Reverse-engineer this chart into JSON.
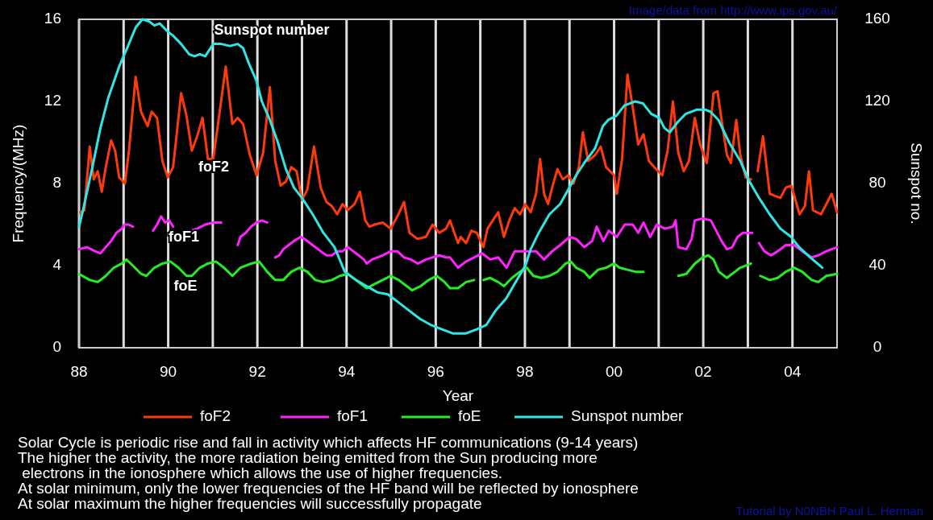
{
  "chart_data": {
    "type": "line",
    "subtitle": "Image/data from http://www.ips.gov.au/",
    "xlabel": "Year",
    "ylabel": "Frequency/(MHz)",
    "y2label": "Sunspot no.",
    "xlim": [
      1988,
      2005
    ],
    "xticks": [
      {
        "value": 1988,
        "label": "88"
      },
      {
        "value": 1989,
        "label": null
      },
      {
        "value": 1990,
        "label": "90"
      },
      {
        "value": 1991,
        "label": null
      },
      {
        "value": 1992,
        "label": "92"
      },
      {
        "value": 1993,
        "label": null
      },
      {
        "value": 1994,
        "label": "94"
      },
      {
        "value": 1995,
        "label": null
      },
      {
        "value": 1996,
        "label": "96"
      },
      {
        "value": 1997,
        "label": null
      },
      {
        "value": 1998,
        "label": "98"
      },
      {
        "value": 1999,
        "label": null
      },
      {
        "value": 2000,
        "label": "00"
      },
      {
        "value": 2001,
        "label": null
      },
      {
        "value": 2002,
        "label": "02"
      },
      {
        "value": 2003,
        "label": null
      },
      {
        "value": 2004,
        "label": "04"
      }
    ],
    "ylim": [
      0,
      16
    ],
    "yticks": [
      0,
      4,
      8,
      12,
      16
    ],
    "y2lim": [
      0,
      160
    ],
    "y2ticks": [
      0,
      40,
      80,
      120,
      160
    ],
    "grid": "x",
    "legend": "bottom",
    "series": [
      {
        "name": "foF2",
        "color": "#ff3a0a",
        "x": [
          1988.03,
          1988.12,
          1988.24,
          1988.33,
          1988.42,
          1988.51,
          1988.6,
          1988.72,
          1988.81,
          1988.9,
          1989.03,
          1989.12,
          1989.27,
          1989.39,
          1989.54,
          1989.63,
          1989.75,
          1989.87,
          1989.99,
          1990.11,
          1990.29,
          1990.41,
          1990.53,
          1990.65,
          1990.77,
          1990.89,
          1991.01,
          1991.13,
          1991.29,
          1991.44,
          1991.56,
          1991.68,
          1991.83,
          1991.98,
          1992.13,
          1992.28,
          1992.4,
          1992.52,
          1992.64,
          1992.76,
          1992.88,
          1993.0,
          1993.12,
          1993.27,
          1993.42,
          1993.55,
          1993.67,
          1993.79,
          1993.91,
          1994.03,
          1994.18,
          1994.3,
          1994.42,
          1994.51,
          1994.63,
          1994.81,
          1994.99,
          1995.14,
          1995.29,
          1995.41,
          1995.59,
          1995.78,
          1995.93,
          1996.08,
          1996.23,
          1996.32,
          1996.5,
          1996.56,
          1996.68,
          1996.8,
          1996.92,
          1997.07,
          1997.16,
          1997.28,
          1997.4,
          1997.53,
          1997.65,
          1997.77,
          1997.89,
          1998.01,
          1998.13,
          1998.25,
          1998.34,
          1998.43,
          1998.52,
          1998.61,
          1998.73,
          1998.85,
          1998.97,
          1999.09,
          1999.21,
          1999.3,
          1999.42,
          1999.58,
          1999.7,
          1999.82,
          2000.0,
          2000.06,
          2000.18,
          2000.3,
          2000.42,
          2000.54,
          2000.66,
          2000.78,
          2000.9,
          2001.08,
          2001.2,
          2001.32,
          2001.44,
          2001.56,
          2001.68,
          2001.81,
          2001.93,
          2002.08,
          2002.23,
          2002.32,
          2002.41,
          2002.53,
          2002.62,
          2002.74,
          2002.83,
          2002.95,
          2003.07,
          2003.14,
          2003.22,
          2003.34,
          2003.49,
          2003.61,
          2003.73,
          2003.85,
          2003.97,
          2004.04,
          2004.16,
          2004.28,
          2004.37,
          2004.46,
          2004.64,
          2004.76,
          2004.88,
          2005.0
        ],
        "values": [
          6.6,
          6.7,
          9.8,
          8.2,
          8.6,
          7.6,
          8.8,
          10.1,
          9.6,
          8.3,
          8.0,
          9.6,
          13.2,
          11.5,
          10.8,
          11.5,
          11.2,
          9.1,
          8.3,
          8.8,
          12.4,
          11.3,
          9.6,
          10.3,
          11.2,
          9.2,
          9.2,
          11.1,
          13.7,
          10.9,
          11.2,
          10.9,
          9.4,
          8.4,
          9.5,
          12.7,
          9.1,
          7.9,
          8.1,
          8.8,
          8.6,
          7.2,
          7.7,
          9.8,
          7.8,
          7.1,
          6.9,
          6.5,
          7.0,
          6.7,
          7.0,
          7.6,
          6.2,
          5.9,
          6.0,
          6.1,
          5.8,
          6.4,
          7.1,
          5.6,
          5.3,
          5.4,
          6.0,
          5.6,
          5.8,
          6.2,
          5.1,
          5.4,
          5.1,
          5.7,
          5.6,
          4.9,
          5.8,
          6.2,
          6.6,
          5.4,
          6.2,
          6.8,
          6.5,
          7.0,
          6.6,
          7.5,
          9.2,
          7.5,
          7.0,
          7.8,
          8.7,
          8.2,
          8.4,
          8.0,
          8.8,
          10.5,
          9.1,
          9.4,
          9.8,
          8.8,
          8.4,
          7.5,
          9.2,
          13.3,
          11.7,
          9.9,
          10.4,
          9.1,
          8.8,
          8.4,
          9.6,
          12.0,
          9.5,
          8.6,
          9.1,
          11.2,
          9.9,
          9.0,
          12.4,
          12.5,
          11.1,
          9.4,
          9.0,
          11.1,
          9.4,
          8.3,
          8.2,
          null,
          8.6,
          10.3,
          7.5,
          7.4,
          7.3,
          7.8,
          7.9,
          7.4,
          6.5,
          6.9,
          8.6,
          6.7,
          6.5,
          7.0,
          7.5,
          6.6
        ]
      },
      {
        "name": "foF1",
        "color": "#ff22ff",
        "x": [
          1988.0,
          1988.18,
          1988.36,
          1988.48,
          1988.6,
          1988.72,
          1988.84,
          1988.96,
          1989.02,
          1989.11,
          1989.21,
          1989.45,
          1989.66,
          1989.75,
          1989.84,
          1989.93,
          1990.02,
          1990.11,
          1990.3,
          1990.5,
          1990.65,
          1990.83,
          1991.01,
          1991.19,
          1991.4,
          1991.56,
          1991.62,
          1991.74,
          1991.86,
          1991.98,
          1992.1,
          1992.22,
          1992.3,
          1992.4,
          1992.49,
          1992.58,
          1992.7,
          1992.82,
          1992.97,
          1993.06,
          1993.18,
          1993.3,
          1993.42,
          1993.55,
          1993.67,
          1993.79,
          1993.91,
          1994.03,
          1994.15,
          1994.27,
          1994.39,
          1994.45,
          1994.57,
          1994.69,
          1994.81,
          1994.99,
          1995.14,
          1995.29,
          1995.44,
          1995.6,
          1995.78,
          1995.93,
          1996.08,
          1996.23,
          1996.32,
          1996.5,
          1996.68,
          1996.86,
          1997.04,
          1997.22,
          1997.4,
          1997.59,
          1997.77,
          1998.01,
          1998.25,
          1998.43,
          1998.61,
          1998.79,
          1999.0,
          1999.15,
          1999.33,
          1999.51,
          1999.61,
          1999.76,
          1999.88,
          2000.06,
          2000.24,
          2000.42,
          2000.54,
          2000.66,
          2000.81,
          2000.96,
          2001.14,
          2001.32,
          2001.38,
          2001.44,
          2001.62,
          2001.74,
          2001.81,
          2001.99,
          2002.17,
          2002.29,
          2002.41,
          2002.53,
          2002.65,
          2002.77,
          2002.89,
          2003.1,
          2003.17,
          2003.25,
          2003.37,
          2003.52,
          2003.67,
          2003.85,
          2004.04,
          2004.22,
          2004.43,
          2004.58,
          2004.76,
          2005.0
        ],
        "values": [
          4.8,
          4.9,
          4.7,
          4.6,
          4.9,
          5.2,
          5.6,
          5.8,
          6.0,
          6.0,
          5.9,
          null,
          5.7,
          6.0,
          6.4,
          6.1,
          6.2,
          5.9,
          null,
          5.7,
          5.8,
          6.0,
          6.1,
          6.1,
          null,
          5.0,
          5.4,
          5.6,
          5.9,
          6.1,
          6.2,
          6.1,
          null,
          4.4,
          4.5,
          4.8,
          5.0,
          5.2,
          5.4,
          5.3,
          5.1,
          4.9,
          4.7,
          4.5,
          4.5,
          4.7,
          4.7,
          4.9,
          4.7,
          4.5,
          4.3,
          4.1,
          4.3,
          4.4,
          4.5,
          4.7,
          4.7,
          4.4,
          4.3,
          4.1,
          4.3,
          4.4,
          4.5,
          4.4,
          4.4,
          3.9,
          4.2,
          4.4,
          4.6,
          4.3,
          4.4,
          3.9,
          4.7,
          4.7,
          4.7,
          4.3,
          4.7,
          5.0,
          5.4,
          5.3,
          4.9,
          5.2,
          5.9,
          5.2,
          5.7,
          5.4,
          6.0,
          6.0,
          5.6,
          6.1,
          5.4,
          6.0,
          5.8,
          5.9,
          6.2,
          4.9,
          4.8,
          5.3,
          6.2,
          6.3,
          6.2,
          5.7,
          5.2,
          4.8,
          4.9,
          5.4,
          5.6,
          5.6,
          null,
          5.1,
          4.7,
          4.5,
          4.7,
          5.0,
          5.0,
          4.7,
          4.4,
          4.5,
          4.7,
          4.9
        ]
      },
      {
        "name": "foE",
        "color": "#22ee22",
        "x": [
          1988.0,
          1988.24,
          1988.42,
          1988.6,
          1988.78,
          1988.96,
          1989.06,
          1989.21,
          1989.39,
          1989.51,
          1989.69,
          1989.87,
          1990.05,
          1990.23,
          1990.41,
          1990.53,
          1990.71,
          1990.89,
          1991.07,
          1991.25,
          1991.44,
          1991.62,
          1991.86,
          1992.04,
          1992.22,
          1992.4,
          1992.58,
          1992.76,
          1992.94,
          1993.12,
          1993.3,
          1993.48,
          1993.67,
          1993.85,
          1994.03,
          1994.21,
          1994.33,
          1994.45,
          1994.63,
          1994.81,
          1994.99,
          1995.17,
          1995.35,
          1995.47,
          1995.66,
          1995.84,
          1996.02,
          1996.2,
          1996.32,
          1996.5,
          1996.68,
          1996.86,
          1996.97,
          1997.07,
          1997.22,
          1997.4,
          1997.53,
          1997.71,
          1997.89,
          1998.04,
          1998.19,
          1998.37,
          1998.55,
          1998.73,
          1998.91,
          1999.03,
          1999.15,
          1999.33,
          1999.45,
          1999.64,
          1999.82,
          2000.0,
          2000.12,
          2000.3,
          2000.48,
          2000.66,
          2001.0,
          2001.44,
          2001.62,
          2001.81,
          2001.99,
          2002.11,
          2002.23,
          2002.35,
          2002.53,
          2002.71,
          2002.83,
          2003.07,
          2003.12,
          2003.28,
          2003.49,
          2003.67,
          2003.85,
          2004.04,
          2004.22,
          2004.43,
          2004.58,
          2004.76,
          2005.0
        ],
        "values": [
          3.6,
          3.3,
          3.2,
          3.5,
          3.9,
          4.1,
          4.3,
          4.0,
          3.6,
          3.5,
          3.9,
          4.1,
          4.2,
          3.9,
          3.5,
          3.5,
          3.9,
          4.1,
          4.2,
          3.9,
          3.5,
          3.9,
          4.1,
          4.2,
          3.7,
          3.3,
          3.3,
          3.7,
          3.9,
          3.7,
          3.3,
          3.2,
          3.3,
          3.5,
          3.6,
          3.3,
          3.1,
          2.9,
          3.1,
          3.3,
          3.5,
          3.3,
          3.0,
          2.8,
          3.0,
          3.3,
          3.5,
          3.2,
          2.9,
          2.9,
          3.2,
          3.3,
          null,
          3.3,
          3.4,
          3.2,
          3.0,
          3.4,
          3.7,
          3.9,
          3.5,
          3.4,
          3.5,
          3.7,
          4.1,
          4.2,
          3.9,
          3.7,
          3.4,
          3.8,
          3.9,
          4.1,
          3.9,
          3.8,
          3.7,
          3.7,
          null,
          3.5,
          3.6,
          4.1,
          4.4,
          4.5,
          4.3,
          3.7,
          3.4,
          3.7,
          3.9,
          4.1,
          null,
          3.5,
          3.3,
          3.4,
          3.7,
          3.9,
          3.7,
          3.3,
          3.2,
          3.5,
          3.6
        ]
      },
      {
        "name": "Sunspot number",
        "color": "#2ee6e6",
        "axis": "y2",
        "x": [
          1988.0,
          1988.09,
          1988.3,
          1988.48,
          1988.66,
          1988.9,
          1989.08,
          1989.27,
          1989.42,
          1989.57,
          1989.69,
          1989.81,
          1989.99,
          1990.11,
          1990.29,
          1990.47,
          1990.59,
          1990.71,
          1990.83,
          1991.01,
          1991.19,
          1991.38,
          1991.56,
          1991.68,
          1991.8,
          1991.98,
          1992.1,
          1992.28,
          1992.46,
          1992.64,
          1992.82,
          1993.0,
          1993.24,
          1993.48,
          1993.73,
          1993.96,
          1994.21,
          1994.45,
          1994.69,
          1994.93,
          1995.17,
          1995.41,
          1995.65,
          1995.9,
          1996.14,
          1996.38,
          1996.68,
          1996.92,
          1997.13,
          1997.34,
          1997.58,
          1997.82,
          1998.01,
          1998.13,
          1998.31,
          1998.55,
          1998.79,
          1998.97,
          1999.15,
          1999.33,
          1999.57,
          1999.75,
          1999.87,
          2000.05,
          2000.23,
          2000.47,
          2000.65,
          2000.83,
          2001.01,
          2001.13,
          2001.25,
          2001.43,
          2001.61,
          2001.86,
          2002.04,
          2002.16,
          2002.34,
          2002.58,
          2002.83,
          2003.01,
          2003.25,
          2003.49,
          2003.73,
          2003.97,
          2004.15,
          2004.4,
          2004.67
        ],
        "values": [
          59,
          67,
          88,
          107,
          122,
          137,
          146,
          156,
          160,
          159,
          157,
          158,
          154,
          152,
          148,
          143,
          142,
          143,
          142,
          148,
          148,
          147,
          148,
          146,
          139,
          130,
          120,
          111,
          100,
          87,
          78,
          73,
          65,
          56,
          49,
          37,
          33,
          30,
          27,
          26,
          22,
          18,
          14,
          11,
          9,
          7,
          7,
          9,
          11,
          18,
          24,
          33,
          40,
          48,
          56,
          65,
          70,
          77,
          84,
          90,
          97,
          108,
          111,
          113,
          118,
          120,
          119,
          114,
          112,
          107,
          105,
          110,
          114,
          116,
          116,
          115,
          111,
          100,
          91,
          82,
          73,
          65,
          58,
          54,
          49,
          44,
          39
        ]
      }
    ],
    "annotations": [
      "Solar Cycle is periodic rise and fall in activity which affects HF communications (9-14 years)",
      "The higher the activity, the more radiation being emitted from the Sun producing more",
      " electrons in the ionosphere which allows the use of higher frequencies.",
      "At solar minimum, only the lower frequencies of the HF band will be reflected by ionosphere",
      "At solar maximum the higher frequencies will successfully propagate",
      "Tutorial by N0NBH Paul L. Herman"
    ]
  }
}
